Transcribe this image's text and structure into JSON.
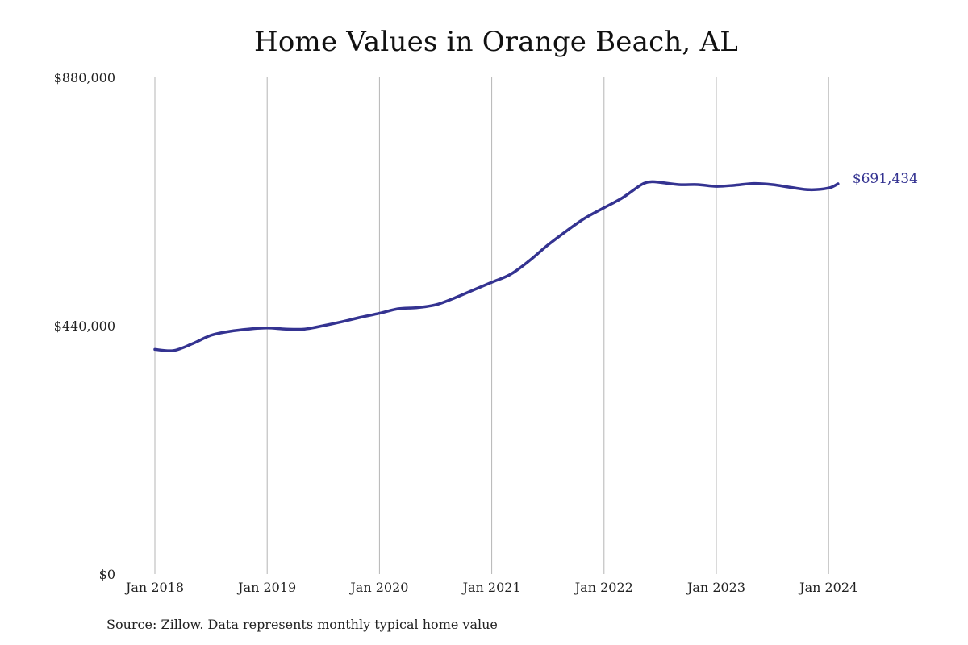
{
  "chart_data": {
    "type": "line",
    "title": "Home Values in Orange Beach, AL",
    "source": "Source: Zillow. Data represents monthly typical home value",
    "xlabel": "",
    "ylabel": "",
    "ylim": [
      0,
      880000
    ],
    "y_ticks": [
      {
        "value": 0,
        "label": "$0"
      },
      {
        "value": 440000,
        "label": "$440,000"
      },
      {
        "value": 880000,
        "label": "$880,000"
      }
    ],
    "x_ticks": [
      {
        "value": "2018-01",
        "label": "Jan 2018"
      },
      {
        "value": "2019-01",
        "label": "Jan 2019"
      },
      {
        "value": "2020-01",
        "label": "Jan 2020"
      },
      {
        "value": "2021-01",
        "label": "Jan 2021"
      },
      {
        "value": "2022-01",
        "label": "Jan 2022"
      },
      {
        "value": "2023-01",
        "label": "Jan 2023"
      },
      {
        "value": "2024-01",
        "label": "Jan 2024"
      }
    ],
    "grid": {
      "vertical": true,
      "horizontal": false
    },
    "legend": "none",
    "end_label": "$691,434",
    "series": [
      {
        "color": "#343391",
        "x": [
          "2018-01",
          "2018-03",
          "2018-05",
          "2018-07",
          "2018-09",
          "2018-11",
          "2019-01",
          "2019-03",
          "2019-05",
          "2019-07",
          "2019-09",
          "2019-11",
          "2020-01",
          "2020-03",
          "2020-05",
          "2020-07",
          "2020-09",
          "2020-11",
          "2021-01",
          "2021-03",
          "2021-05",
          "2021-07",
          "2021-09",
          "2021-11",
          "2022-01",
          "2022-03",
          "2022-05",
          "2022-06",
          "2022-07",
          "2022-09",
          "2022-11",
          "2023-01",
          "2023-03",
          "2023-05",
          "2023-07",
          "2023-09",
          "2023-11",
          "2024-01",
          "2024-02"
        ],
        "values": [
          398000,
          396000,
          408000,
          423000,
          430000,
          434000,
          436000,
          434000,
          434000,
          440000,
          447000,
          455000,
          462000,
          470000,
          472000,
          477000,
          489000,
          503000,
          517000,
          531000,
          555000,
          583000,
          608000,
          631000,
          649000,
          667000,
          690000,
          695000,
          694000,
          690000,
          690000,
          687000,
          689000,
          692000,
          690000,
          685000,
          681000,
          684000,
          691434
        ]
      }
    ]
  }
}
